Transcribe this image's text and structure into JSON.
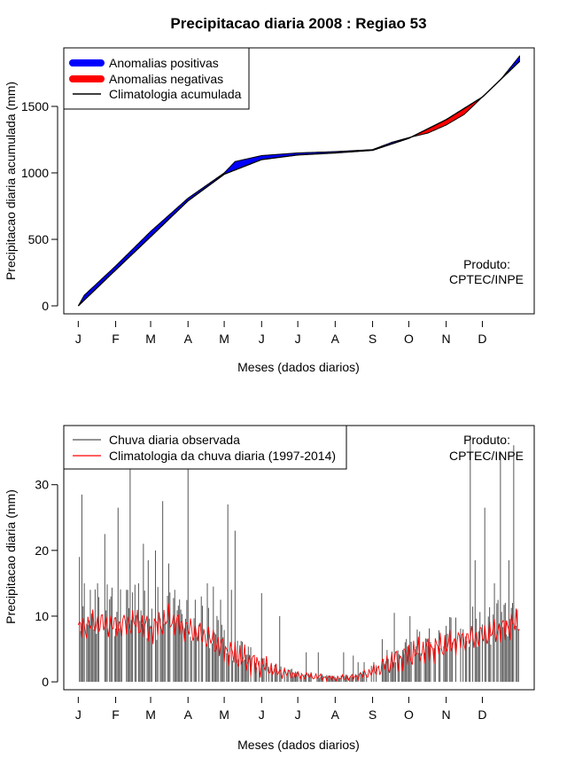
{
  "title": "Precipitacao diaria 2008 : Regiao 53",
  "chart_data": [
    {
      "type": "area",
      "name": "cumulative",
      "ylabel": "Precipitacao diaria acumulada (mm)",
      "xlabel": "Meses (dados diarios)",
      "months": [
        "J",
        "F",
        "M",
        "A",
        "M",
        "J",
        "J",
        "A",
        "S",
        "O",
        "N",
        "D"
      ],
      "yticks": [
        0,
        500,
        1000,
        1500
      ],
      "ylim": [
        -60,
        1940
      ],
      "xlim": [
        -12,
        378
      ],
      "legend": [
        {
          "label": "Anomalias positivas",
          "color": "#0000ff",
          "kind": "thick"
        },
        {
          "label": "Anomalias negativas",
          "color": "#ff0000",
          "kind": "thick"
        },
        {
          "label": "Climatologia acumulada",
          "color": "#000000",
          "kind": "line"
        }
      ],
      "credit": [
        "Produto:",
        "CPTEC/INPE"
      ],
      "climatology_cumulative": {
        "day": [
          0,
          31,
          60,
          91,
          121,
          152,
          182,
          213,
          244,
          274,
          305,
          335,
          366
        ],
        "value": [
          0,
          270,
          520,
          790,
          990,
          1100,
          1135,
          1150,
          1170,
          1260,
          1400,
          1570,
          1840
        ]
      },
      "observed_cumulative": {
        "day": [
          0,
          5,
          31,
          60,
          91,
          121,
          130,
          152,
          182,
          213,
          244,
          260,
          274,
          290,
          305,
          320,
          335,
          350,
          366
        ],
        "value": [
          0,
          80,
          300,
          560,
          810,
          1000,
          1085,
          1130,
          1150,
          1160,
          1175,
          1230,
          1265,
          1300,
          1360,
          1440,
          1570,
          1700,
          1880
        ]
      }
    },
    {
      "type": "bar",
      "name": "daily",
      "ylabel": "Precipitacao diaria (mm)",
      "xlabel": "Meses (dados diarios)",
      "months": [
        "J",
        "F",
        "M",
        "A",
        "M",
        "J",
        "J",
        "A",
        "S",
        "O",
        "N",
        "D"
      ],
      "yticks": [
        0,
        10,
        20,
        30
      ],
      "ylim": [
        -1.2,
        39
      ],
      "xlim": [
        -12,
        378
      ],
      "legend": [
        {
          "label": "Chuva diaria observada",
          "color": "#555555",
          "kind": "line"
        },
        {
          "label": "Climatologia da chuva diaria (1997-2014)",
          "color": "#ff0000",
          "kind": "line"
        }
      ],
      "credit": [
        "Produto:",
        "CPTEC/INPE"
      ],
      "observed_daily_spikes": {
        "day": [
          1,
          3,
          5,
          10,
          16,
          22,
          27,
          33,
          40,
          43,
          50,
          54,
          58,
          64,
          70,
          75,
          80,
          85,
          91,
          97,
          102,
          107,
          112,
          118,
          124,
          127,
          130,
          152,
          167,
          189,
          199,
          220,
          228,
          232,
          237,
          245,
          252,
          262,
          275,
          290,
          310,
          319,
          325,
          329,
          337,
          345,
          350,
          357,
          361,
          364
        ],
        "value": [
          19,
          28.5,
          15,
          14,
          15,
          22.5,
          13,
          26.5,
          14,
          33,
          15,
          21,
          18.5,
          20,
          27.5,
          18,
          14,
          11,
          33,
          12.5,
          13,
          15,
          14.5,
          12.5,
          27,
          14,
          23,
          13.5,
          10,
          4.5,
          4.5,
          4.5,
          4,
          3,
          3,
          3,
          6.5,
          10.5,
          10,
          5.5,
          6,
          8,
          37.5,
          18.5,
          26.5,
          15,
          35,
          18.5,
          36,
          11
        ]
      },
      "climatology_daily": {
        "day": [
          0,
          15,
          31,
          45,
          60,
          75,
          91,
          105,
          121,
          135,
          152,
          167,
          182,
          197,
          213,
          228,
          244,
          259,
          274,
          290,
          305,
          320,
          335,
          350,
          366
        ],
        "value": [
          8,
          9,
          8.5,
          9,
          8,
          9.5,
          8,
          7,
          5,
          3.5,
          2.5,
          1.5,
          1,
          0.8,
          0.5,
          0.7,
          1.5,
          3,
          4,
          5,
          5.5,
          6.5,
          7,
          8,
          9
        ]
      }
    }
  ]
}
